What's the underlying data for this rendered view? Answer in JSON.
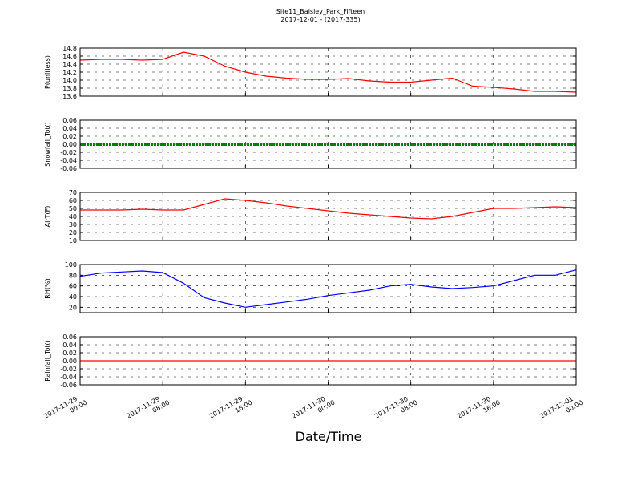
{
  "chart_data": {
    "type": "line",
    "title": "Site11_Baisley_Park_Fifteen",
    "subtitle": "2017-12-01 - (2017-335)",
    "xlabel": "Date/Time",
    "x": [
      "2017-11-29 00:00",
      "2017-11-29 02:00",
      "2017-11-29 04:00",
      "2017-11-29 06:00",
      "2017-11-29 08:00",
      "2017-11-29 10:00",
      "2017-11-29 12:00",
      "2017-11-29 14:00",
      "2017-11-29 16:00",
      "2017-11-29 18:00",
      "2017-11-29 20:00",
      "2017-11-29 22:00",
      "2017-11-30 00:00",
      "2017-11-30 02:00",
      "2017-11-30 04:00",
      "2017-11-30 06:00",
      "2017-11-30 08:00",
      "2017-11-30 10:00",
      "2017-11-30 12:00",
      "2017-11-30 14:00",
      "2017-11-30 16:00",
      "2017-11-30 18:00",
      "2017-11-30 20:00",
      "2017-11-30 22:00",
      "2017-12-01 00:00"
    ],
    "xlim": [
      "2017-11-29 00:00",
      "2017-12-01 00:00"
    ],
    "xticks": [
      "2017-11-29 00:00",
      "2017-11-29 08:00",
      "2017-11-29 16:00",
      "2017-11-30 00:00",
      "2017-11-30 08:00",
      "2017-11-30 16:00",
      "2017-12-01 00:00"
    ],
    "grid": true,
    "panels": [
      {
        "ylabel": "P(unitless)",
        "color": "#ff0000",
        "ylim": [
          13.6,
          14.8
        ],
        "yticks": [
          13.6,
          13.8,
          {
            "value": 14.0,
            "label": "14.0"
          },
          14.2,
          14.4,
          14.6,
          14.8
        ],
        "values": [
          14.5,
          14.52,
          14.52,
          14.5,
          14.52,
          14.7,
          14.6,
          14.35,
          14.2,
          14.1,
          14.05,
          14.02,
          14.02,
          14.04,
          13.98,
          13.95,
          13.95,
          14.0,
          14.05,
          13.85,
          13.82,
          13.78,
          13.72,
          13.72,
          13.7
        ]
      },
      {
        "ylabel": "Snowfall_Tot()",
        "color": "#008000",
        "ylim": [
          -0.06,
          0.06
        ],
        "yticks": [
          0.06,
          0.04,
          0.02,
          {
            "value": 0,
            "label": "0.00"
          },
          -0.02,
          -0.04,
          -0.06
        ],
        "values": [
          0,
          0,
          0,
          0,
          0,
          0,
          0,
          0,
          0,
          0,
          0,
          0,
          0,
          0,
          0,
          0,
          0,
          0,
          0,
          0,
          0,
          0,
          0,
          0,
          0
        ]
      },
      {
        "ylabel": "AirT(F)",
        "color": "#ff0000",
        "ylim": [
          10,
          70
        ],
        "yticks": [
          10,
          20,
          30,
          40,
          50,
          60,
          70
        ],
        "values": [
          48,
          48,
          48,
          49,
          48,
          48,
          55,
          62,
          60,
          57,
          53,
          50,
          47,
          44,
          42,
          40,
          38,
          37,
          40,
          45,
          50,
          50,
          51,
          52,
          51
        ]
      },
      {
        "ylabel": "RH(%)",
        "color": "#0000ff",
        "ylim": [
          10,
          100
        ],
        "yticks": [
          20,
          40,
          60,
          80,
          100
        ],
        "values": [
          78,
          84,
          86,
          88,
          85,
          65,
          38,
          28,
          20,
          25,
          30,
          35,
          42,
          47,
          52,
          60,
          63,
          58,
          55,
          57,
          60,
          70,
          80,
          80,
          90
        ]
      },
      {
        "ylabel": "Rainfall_Tot()",
        "color": "#ff0000",
        "ylim": [
          -0.06,
          0.06
        ],
        "yticks": [
          0.06,
          0.04,
          0.02,
          {
            "value": 0,
            "label": "0.00"
          },
          -0.02,
          -0.04,
          -0.06
        ],
        "values": [
          0,
          0,
          0,
          0,
          0,
          0,
          0,
          0,
          0,
          0,
          0,
          0,
          0,
          0,
          0,
          0,
          0,
          0,
          0,
          0,
          0,
          0,
          0,
          0,
          0
        ]
      }
    ]
  }
}
